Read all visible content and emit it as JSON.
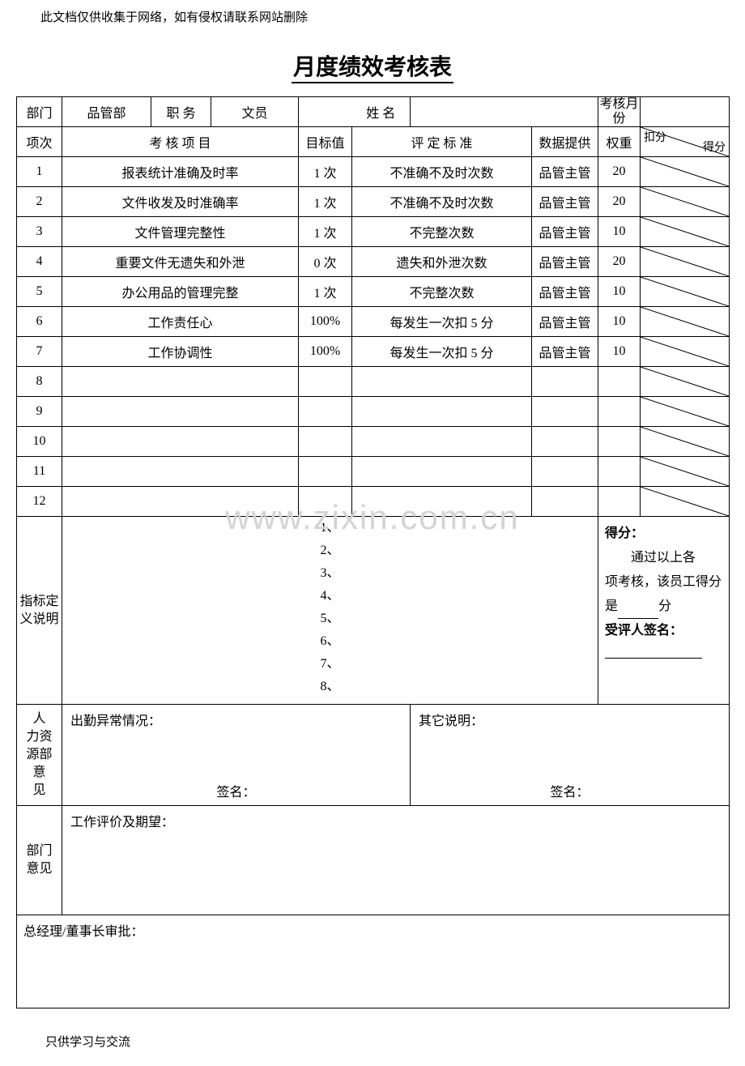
{
  "header_note": "此文档仅供收集于网络，如有侵权请联系网站删除",
  "title": "月度绩效考核表",
  "row1": {
    "dept_label": "部门",
    "dept_value": "品管部",
    "position_label": "职 务",
    "position_value": "文员",
    "name_label": "姓 名",
    "name_value": "",
    "month_label": "考核月份",
    "month_value": ""
  },
  "row2": {
    "item_no": "项次",
    "item_name": "考 核 项 目",
    "target": "目标值",
    "standard": "评 定 标 准",
    "provider": "数据提供",
    "weight": "权重",
    "diag_top": "扣分",
    "diag_bot": "得分"
  },
  "items": [
    {
      "no": "1",
      "name": "报表统计准确及时率",
      "target": "1 次",
      "standard": "不准确不及时次数",
      "provider": "品管主管",
      "weight": "20"
    },
    {
      "no": "2",
      "name": "文件收发及时准确率",
      "target": "1 次",
      "standard": "不准确不及时次数",
      "provider": "品管主管",
      "weight": "20"
    },
    {
      "no": "3",
      "name": "文件管理完整性",
      "target": "1 次",
      "standard": "不完整次数",
      "provider": "品管主管",
      "weight": "10"
    },
    {
      "no": "4",
      "name": "重要文件无遗失和外泄",
      "target": "0 次",
      "standard": "遗失和外泄次数",
      "provider": "品管主管",
      "weight": "20"
    },
    {
      "no": "5",
      "name": "办公用品的管理完整",
      "target": "1 次",
      "standard": "不完整次数",
      "provider": "品管主管",
      "weight": "10"
    },
    {
      "no": "6",
      "name": "工作责任心",
      "target": "100%",
      "standard": "每发生一次扣 5 分",
      "provider": "品管主管",
      "weight": "10"
    },
    {
      "no": "7",
      "name": "工作协调性",
      "target": "100%",
      "standard": "每发生一次扣 5 分",
      "provider": "品管主管",
      "weight": "10"
    },
    {
      "no": "8",
      "name": "",
      "target": "",
      "standard": "",
      "provider": "",
      "weight": ""
    },
    {
      "no": "9",
      "name": "",
      "target": "",
      "standard": "",
      "provider": "",
      "weight": ""
    },
    {
      "no": "10",
      "name": "",
      "target": "",
      "standard": "",
      "provider": "",
      "weight": ""
    },
    {
      "no": "11",
      "name": "",
      "target": "",
      "standard": "",
      "provider": "",
      "weight": ""
    },
    {
      "no": "12",
      "name": "",
      "target": "",
      "standard": "",
      "provider": "",
      "weight": ""
    }
  ],
  "indicator": {
    "label": "指标定义说明",
    "lines": [
      "1、",
      "2、",
      "3、",
      "4、",
      "5、",
      "6、",
      "7、",
      "8、"
    ]
  },
  "score": {
    "title": "得分：",
    "text1": "通过以上各",
    "text2": "项考核，该员工得分",
    "text3_prefix": "是",
    "text3_suffix": "分",
    "sig_label": "受评人签名："
  },
  "hr": {
    "label": "人 力资源部意 见",
    "left_title": "出勤异常情况：",
    "right_title": "其它说明：",
    "sign": "签名："
  },
  "dept_opinion": {
    "label": "部门 意见",
    "title": "工作评价及期望："
  },
  "approval_label": "总经理/董事长审批：",
  "footer_note": "只供学习与交流",
  "watermark": "www.zixin.com.cn"
}
